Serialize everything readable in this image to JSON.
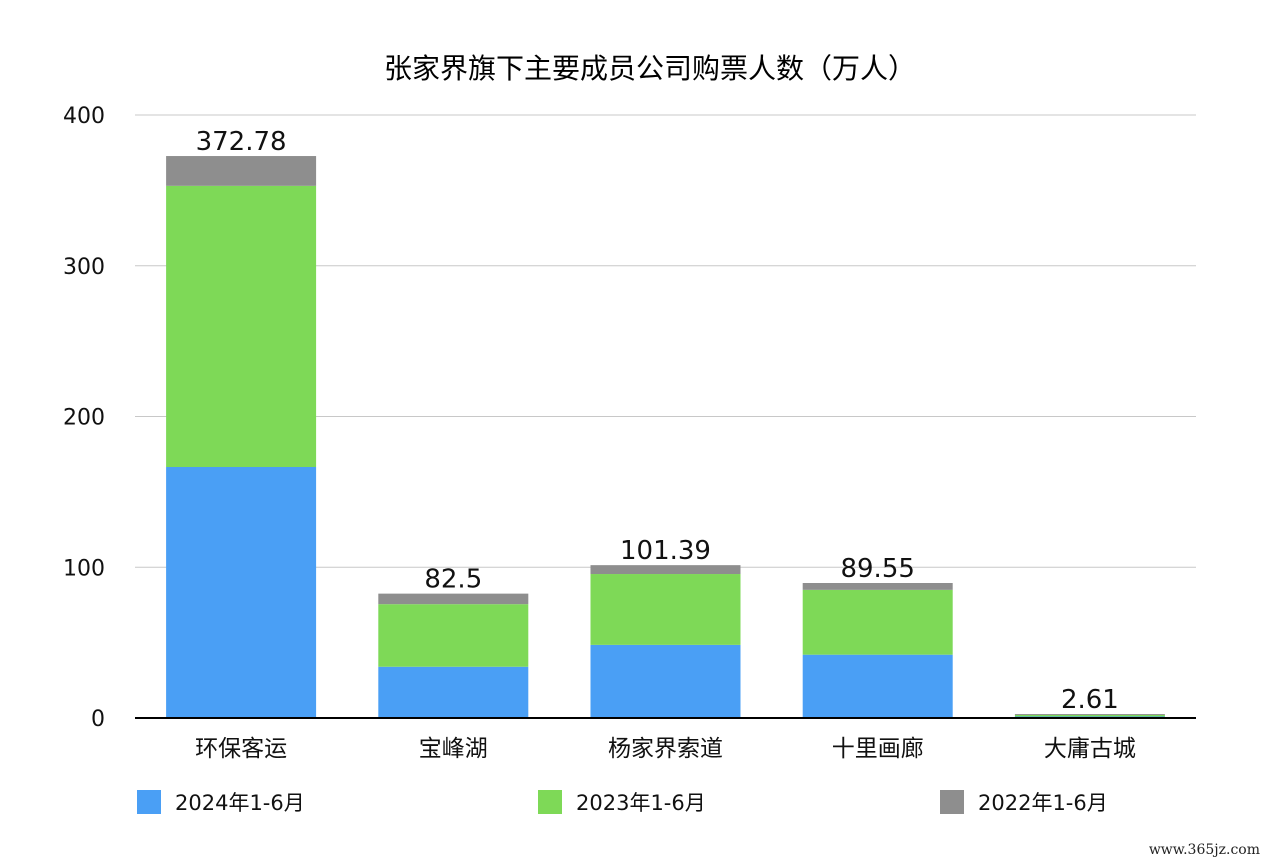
{
  "watermark_text": "www.365jz.com",
  "chart_data": {
    "type": "bar",
    "stacked": true,
    "title": "张家界旗下主要成员公司购票人数（万人）",
    "xlabel": "",
    "ylabel": "",
    "ylim": [
      0,
      400
    ],
    "yticks": [
      "0",
      "100",
      "200",
      "300",
      "400"
    ],
    "grid": true,
    "legend_position": "bottom",
    "categories": [
      "环保客运",
      "宝峰湖",
      "杨家界索道",
      "十里画廊",
      "大庸古城"
    ],
    "series": [
      {
        "name": "2024年1-6月",
        "color": "#4a9ff5",
        "values": [
          166.5,
          34,
          48.5,
          42,
          1.0
        ]
      },
      {
        "name": "2023年1-6月",
        "color": "#7ed957",
        "values": [
          186.5,
          41.5,
          47,
          43,
          1.0
        ]
      },
      {
        "name": "2022年1-6月",
        "color": "#8e8e8e",
        "values": [
          19.78,
          7,
          5.89,
          4.55,
          0.61
        ]
      }
    ],
    "totals": [
      "372.78",
      "82.5",
      "101.39",
      "89.55",
      "2.61"
    ]
  }
}
